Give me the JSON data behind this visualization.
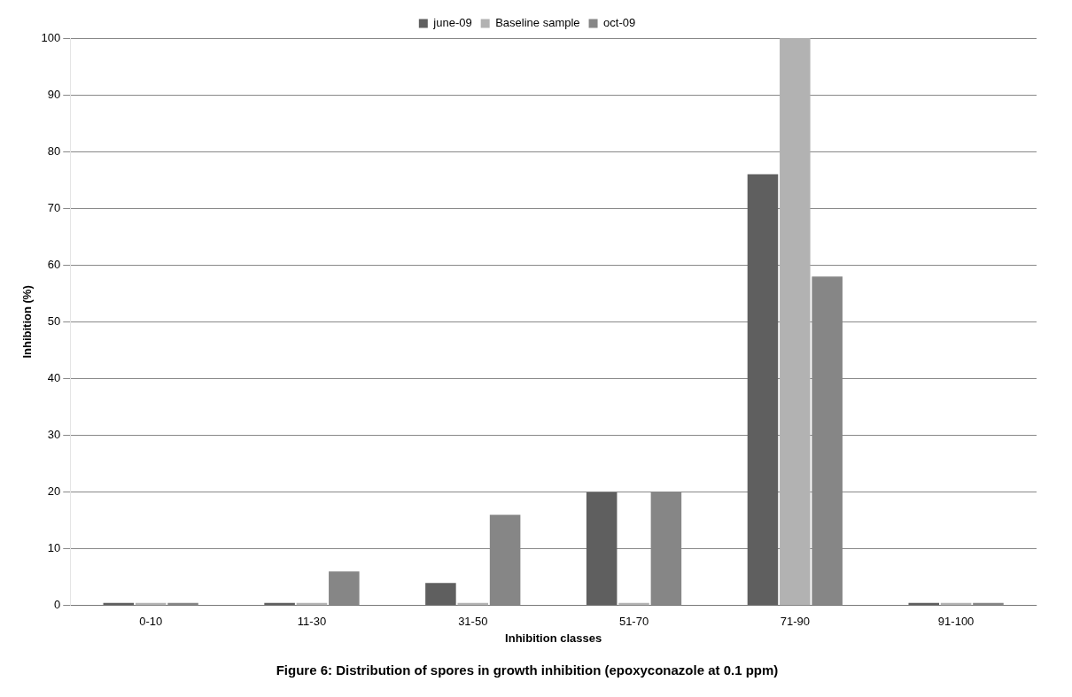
{
  "chart_data": {
    "type": "bar",
    "title": "Figure 6: Distribution of spores in growth inhibition (epoxyconazole at 0.1 ppm)",
    "xlabel": "Inhibition classes",
    "ylabel": "Inhibition (%)",
    "categories": [
      "0-10",
      "11-30",
      "31-50",
      "51-70",
      "71-90",
      "91-100"
    ],
    "series": [
      {
        "name": "june-09",
        "color": "#5f5f5f",
        "values": [
          0,
          0,
          4,
          20,
          76,
          0
        ]
      },
      {
        "name": "Baseline sample",
        "color": "#b2b2b2",
        "values": [
          0,
          0,
          0,
          0,
          100,
          0
        ]
      },
      {
        "name": "oct-09",
        "color": "#868686",
        "values": [
          0,
          6,
          16,
          20,
          58,
          0
        ]
      }
    ],
    "ylim": [
      0,
      100
    ],
    "yticks": [
      0,
      10,
      20,
      30,
      40,
      50,
      60,
      70,
      80,
      90,
      100
    ],
    "grid": "y",
    "legend": "top"
  }
}
